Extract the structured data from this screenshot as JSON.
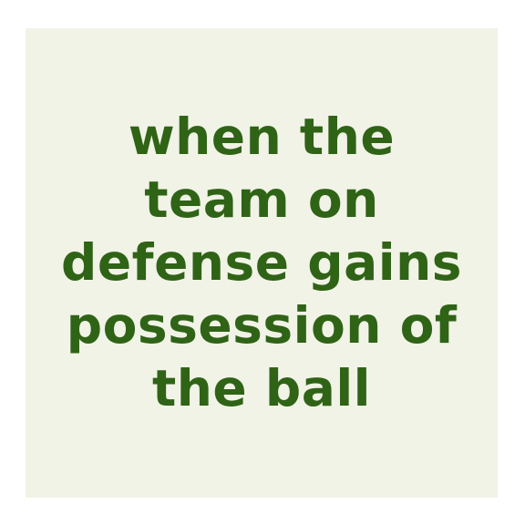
{
  "card": {
    "lines": [
      "when the",
      "team on",
      "defense gains",
      "possession of",
      "the ball"
    ]
  },
  "colors": {
    "text": "#2f6316",
    "card_background": "#f1f3e6",
    "page_background": "#ffffff"
  }
}
